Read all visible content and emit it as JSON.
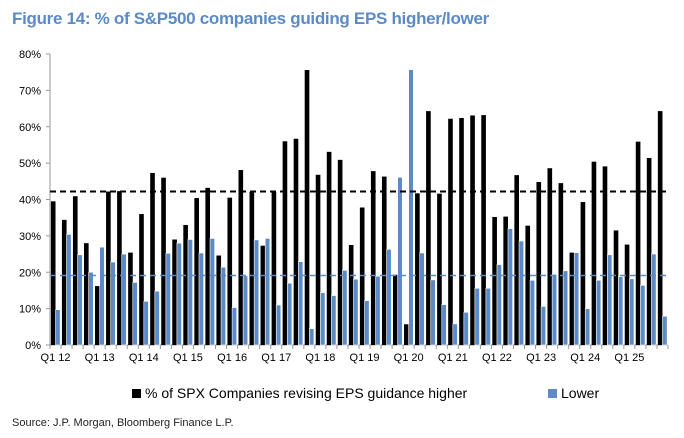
{
  "chart_data": {
    "type": "bar",
    "title": "Figure 14: % of S&P500 companies guiding EPS higher/lower",
    "xlabel": "",
    "ylabel": "",
    "ylim": [
      0,
      80
    ],
    "yticks": [
      "0%",
      "10%",
      "20%",
      "30%",
      "40%",
      "50%",
      "60%",
      "70%",
      "80%"
    ],
    "xtick_labels": [
      "Q1 12",
      "Q1 13",
      "Q1 14",
      "Q1 15",
      "Q1 16",
      "Q1 17",
      "Q1 18",
      "Q1 19",
      "Q1 20",
      "Q1 21",
      "Q1 22",
      "Q1 23",
      "Q1 24",
      "Q1 25"
    ],
    "categories": [
      "Q1 12",
      "Q2 12",
      "Q3 12",
      "Q4 12",
      "Q1 13",
      "Q2 13",
      "Q3 13",
      "Q4 13",
      "Q1 14",
      "Q2 14",
      "Q3 14",
      "Q4 14",
      "Q1 15",
      "Q2 15",
      "Q3 15",
      "Q4 15",
      "Q1 16",
      "Q2 16",
      "Q3 16",
      "Q4 16",
      "Q1 17",
      "Q2 17",
      "Q3 17",
      "Q4 17",
      "Q1 18",
      "Q2 18",
      "Q3 18",
      "Q4 18",
      "Q1 19",
      "Q2 19",
      "Q3 19",
      "Q4 19",
      "Q1 20",
      "Q2 20",
      "Q3 20",
      "Q4 20",
      "Q1 21",
      "Q2 21",
      "Q3 21",
      "Q4 21",
      "Q1 22",
      "Q2 22",
      "Q3 22",
      "Q4 22",
      "Q1 23",
      "Q2 23",
      "Q3 23",
      "Q4 23",
      "Q1 24",
      "Q2 24",
      "Q3 24",
      "Q4 24",
      "Q1 25",
      "Q2 25",
      "Q3 25",
      "Q4 25"
    ],
    "series": [
      {
        "name": "% of SPX Companies revising EPS guidance higher",
        "color": "#000000",
        "values": [
          39.5,
          34.4,
          40.9,
          28.0,
          16.2,
          42.2,
          42.3,
          25.4,
          36.0,
          47.3,
          46.0,
          29.0,
          33.0,
          40.4,
          43.2,
          24.6,
          40.5,
          48.1,
          42.1,
          27.3,
          42.1,
          56.0,
          56.7,
          75.6,
          46.8,
          53.1,
          50.9,
          27.5,
          37.8,
          47.8,
          46.3,
          19.3,
          5.7,
          41.7,
          64.3,
          41.6,
          62.2,
          62.4,
          63.1,
          63.2,
          35.2,
          35.3,
          46.7,
          32.8,
          44.8,
          48.6,
          44.5,
          25.4,
          39.3,
          50.4,
          49.1,
          31.5,
          27.6,
          55.9,
          51.4,
          64.3
        ],
        "average": 42.2
      },
      {
        "name": "Lower",
        "color": "#5b8ac6",
        "values": [
          9.7,
          30.4,
          24.8,
          20.0,
          26.9,
          22.8,
          25.0,
          17.2,
          12.0,
          14.8,
          25.2,
          28.0,
          29.0,
          25.3,
          29.3,
          21.4,
          10.3,
          19.0,
          28.9,
          29.3,
          11.0,
          17.0,
          22.9,
          4.5,
          14.4,
          13.6,
          20.5,
          18.1,
          12.2,
          18.9,
          26.3,
          46.1,
          75.7,
          25.3,
          17.9,
          11.1,
          5.8,
          9.0,
          15.6,
          15.6,
          22.1,
          32.0,
          28.6,
          17.8,
          10.6,
          19.4,
          20.4,
          25.4,
          10.0,
          17.8,
          24.8,
          18.8,
          18.2,
          16.4,
          25.0,
          7.9
        ],
        "average": 19.1
      }
    ],
    "legend_placement": "bottom",
    "grid": false
  },
  "legend": {
    "higher": "% of SPX Companies revising EPS guidance higher",
    "lower": "Lower"
  },
  "source": "Source: J.P. Morgan, Bloomberg Finance L.P."
}
